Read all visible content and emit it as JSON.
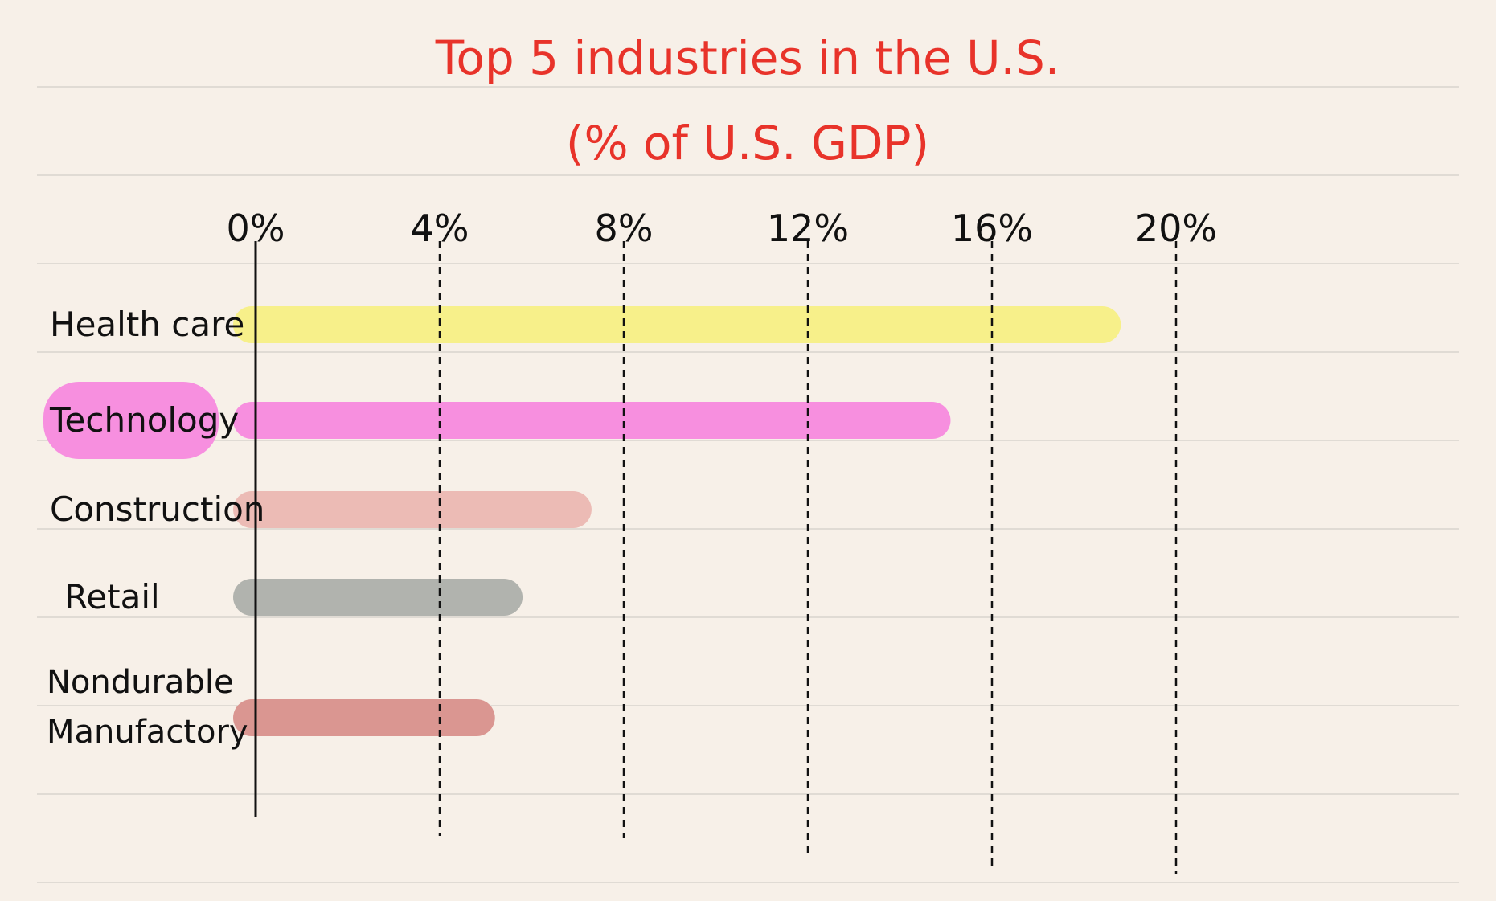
{
  "chart_data": {
    "type": "bar",
    "orientation": "horizontal",
    "title": "Top 5 industries in the U.S.",
    "subtitle": "(% of U.S. GDP)",
    "categories": [
      "Health care",
      "Technology",
      "Construction",
      "Retail",
      "Nondurable Manufactory"
    ],
    "category_lines": [
      [
        "Health care"
      ],
      [
        "Technology"
      ],
      [
        "Construction"
      ],
      [
        "Retail"
      ],
      [
        "Nondurable",
        "Manufactory"
      ]
    ],
    "values": [
      18.8,
      15.1,
      7.3,
      5.8,
      5.2
    ],
    "bar_colors": [
      "#f7f08a",
      "#f78fdf",
      "#ecbbb5",
      "#b1b3ae",
      "#da9691"
    ],
    "highlight": {
      "category": "Technology",
      "color": "#f78fdf"
    },
    "xticks": [
      "0%",
      "4%",
      "8%",
      "12%",
      "16%",
      "20%"
    ],
    "xtick_values": [
      0,
      4,
      8,
      12,
      16,
      20
    ],
    "xlim": [
      0,
      20
    ],
    "grid": "dashed vertical lines at ticks",
    "colors": {
      "title": "#e8332a",
      "background": "#f7f0e8",
      "ruled_lines": "#d9d4cd",
      "ink": "#111111"
    }
  }
}
